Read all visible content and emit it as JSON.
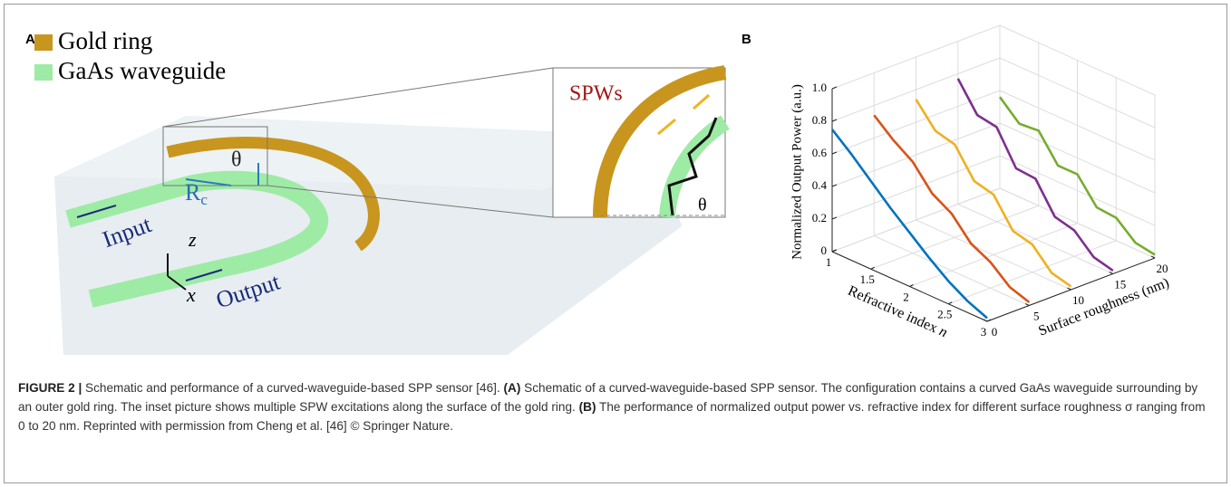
{
  "panel_a": {
    "label": "A",
    "legend": [
      {
        "text": "Gold ring",
        "color": "#c8961e"
      },
      {
        "text": "GaAs waveguide",
        "color": "#9eeba6"
      }
    ],
    "inset_label": "SPWs",
    "angle": "θ",
    "radius": {
      "main": "R",
      "sub": "c"
    },
    "input": "Input",
    "output": "Output",
    "axis_z": "z",
    "axis_x": "x",
    "inset_angle": "θ"
  },
  "chart_data": {
    "type": "line3d",
    "label": "B",
    "zlabel": "Normalized Output Power (a.u.)",
    "xlabel": {
      "text": "Refractive index",
      "var": "n"
    },
    "ylabel": "Surface roughness (nm)",
    "x": [
      1,
      1.25,
      1.5,
      1.75,
      2,
      2.25,
      2.5,
      2.75,
      3
    ],
    "series": [
      {
        "roughness": 0,
        "color": "#0072bd",
        "values": [
          0.75,
          0.65,
          0.54,
          0.43,
          0.33,
          0.23,
          0.14,
          0.07,
          0.02
        ]
      },
      {
        "roughness": 5,
        "color": "#d95319",
        "values": [
          0.74,
          0.64,
          0.56,
          0.42,
          0.35,
          0.22,
          0.16,
          0.06,
          0.02
        ]
      },
      {
        "roughness": 10,
        "color": "#edb120",
        "values": [
          0.74,
          0.6,
          0.57,
          0.4,
          0.37,
          0.2,
          0.17,
          0.05,
          0.02
        ]
      },
      {
        "roughness": 15,
        "color": "#7e2f8e",
        "values": [
          0.77,
          0.6,
          0.58,
          0.38,
          0.37,
          0.19,
          0.16,
          0.05,
          0.02
        ]
      },
      {
        "roughness": 20,
        "color": "#77ac30",
        "values": [
          0.56,
          0.45,
          0.46,
          0.3,
          0.3,
          0.15,
          0.14,
          0.04,
          0.02
        ]
      }
    ],
    "xlim": [
      1,
      3
    ],
    "xticks": [
      1,
      1.5,
      2,
      2.5,
      3
    ],
    "ylim": [
      0,
      20
    ],
    "yticks": [
      0,
      5,
      10,
      15,
      20
    ],
    "zlim": [
      0,
      1
    ],
    "zticks": [
      0,
      0.2,
      0.4,
      0.6,
      0.8,
      {
        "value": 1,
        "label": "1.0"
      }
    ],
    "grid": true
  },
  "caption": {
    "label": "FIGURE 2 |",
    "intro": " Schematic and performance of a curved-waveguide-based SPP sensor [46]. ",
    "a_label": "(A)",
    "a_text": " Schematic of a curved-waveguide-based SPP sensor. The configuration contains a curved GaAs waveguide surrounding by an outer gold ring. The inset picture shows multiple SPW excitations along the surface of the gold ring. ",
    "b_label": "(B)",
    "b_text": " The performance of normalized output power vs. refractive index for different surface roughness σ ranging from 0 to 20 nm. Reprinted with permission from Cheng et al. [46] © Springer Nature."
  }
}
